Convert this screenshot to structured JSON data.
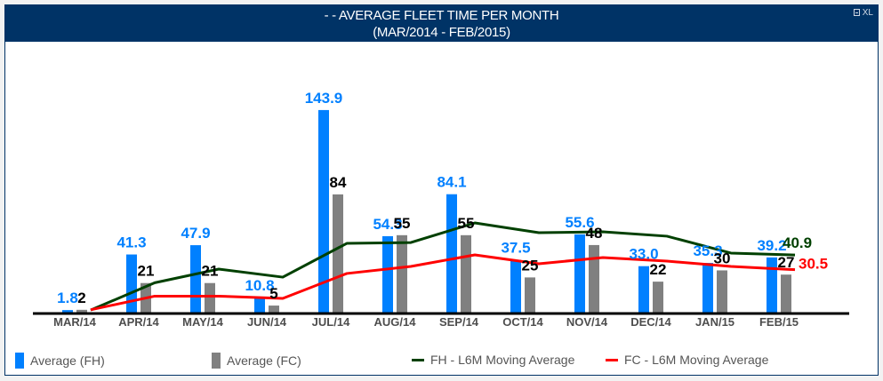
{
  "header": {
    "title_line1": "-   - AVERAGE FLEET TIME PER MONTH",
    "title_line2": "(MAR/2014 - FEB/2015)",
    "export_label": "XL",
    "export_icon": "print-icon"
  },
  "colors": {
    "header_bg": "#003366",
    "fh_bar": "#0080FF",
    "fc_bar": "#808080",
    "fh_line": "#004000",
    "fc_line": "#FF0000"
  },
  "legend": [
    {
      "label": "Average (FH)",
      "type": "bar",
      "color": "#0080FF"
    },
    {
      "label": "Average (FC)",
      "type": "bar",
      "color": "#808080"
    },
    {
      "label": "FH - L6M Moving Average",
      "type": "line",
      "color": "#004000"
    },
    {
      "label": "FC - L6M Moving Average",
      "type": "line",
      "color": "#FF0000"
    }
  ],
  "chart_data": {
    "type": "bar",
    "title": "-   - AVERAGE FLEET TIME PER MONTH (MAR/2014 - FEB/2015)",
    "xlabel": "",
    "ylabel": "",
    "ylim": [
      0,
      150
    ],
    "grid": false,
    "legend_position": "bottom",
    "categories": [
      "MAR/14",
      "APR/14",
      "MAY/14",
      "JUN/14",
      "JUL/14",
      "AUG/14",
      "SEP/14",
      "OCT/14",
      "NOV/14",
      "DEC/14",
      "JAN/15",
      "FEB/15"
    ],
    "series": [
      {
        "name": "Average (FH)",
        "kind": "bar",
        "color": "#0080FF",
        "values": [
          1.8,
          41.3,
          47.9,
          10.8,
          143.9,
          54.3,
          84.1,
          37.5,
          55.6,
          33.0,
          35.3,
          39.2
        ],
        "labels": [
          "1.8",
          "41.3",
          "47.9",
          "10.8",
          "143.9",
          "54.3",
          "84.1",
          "37.5",
          "55.6",
          "33.0",
          "35.3",
          "39.2"
        ]
      },
      {
        "name": "Average (FC)",
        "kind": "bar",
        "color": "#808080",
        "values": [
          2,
          21,
          21,
          5,
          84,
          55,
          55,
          25,
          48,
          22,
          30,
          27
        ],
        "labels": [
          "2",
          "21",
          "21",
          "5",
          "84",
          "55",
          "55",
          "25",
          "48",
          "22",
          "30",
          "27"
        ]
      },
      {
        "name": "FH - L6M Moving Average",
        "kind": "line",
        "color": "#004000",
        "values": [
          1.8,
          21.2,
          30.9,
          25.2,
          49.2,
          49.8,
          63.7,
          56.8,
          57.4,
          54.3,
          42.3,
          40.9
        ],
        "end_label": "40.9"
      },
      {
        "name": "FC - L6M Moving Average",
        "kind": "line",
        "color": "#FF0000",
        "values": [
          2,
          11.7,
          11.7,
          10.1,
          27.8,
          32.8,
          41.0,
          34.7,
          39.1,
          36.6,
          32.8,
          30.5
        ],
        "end_label": "30.5"
      }
    ]
  }
}
